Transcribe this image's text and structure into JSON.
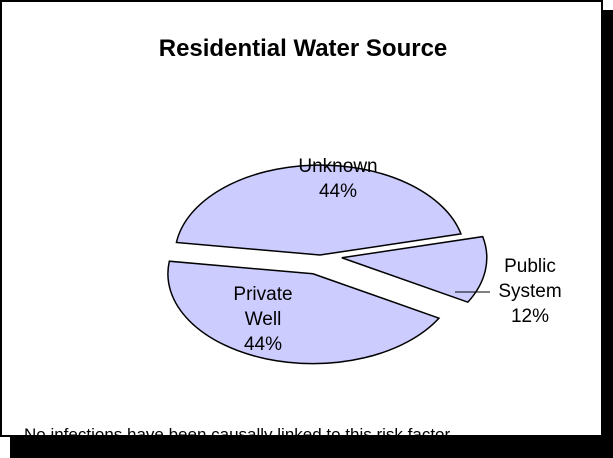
{
  "chart_data": {
    "type": "pie",
    "title": "Residential Water Source",
    "slices": [
      {
        "name_lines": [
          "Unknown"
        ],
        "value": 44,
        "value_label": "44%",
        "exploded": false
      },
      {
        "name_lines": [
          "Public",
          "System"
        ],
        "value": 12,
        "value_label": "12%",
        "exploded": true
      },
      {
        "name_lines": [
          "Private",
          "Well"
        ],
        "value": 44,
        "value_label": "44%",
        "exploded": true
      }
    ],
    "slice_fill": "#ccccff",
    "slice_stroke": "#000000",
    "legend": "none",
    "footnote": "No infections have been causally linked to this risk factor"
  }
}
